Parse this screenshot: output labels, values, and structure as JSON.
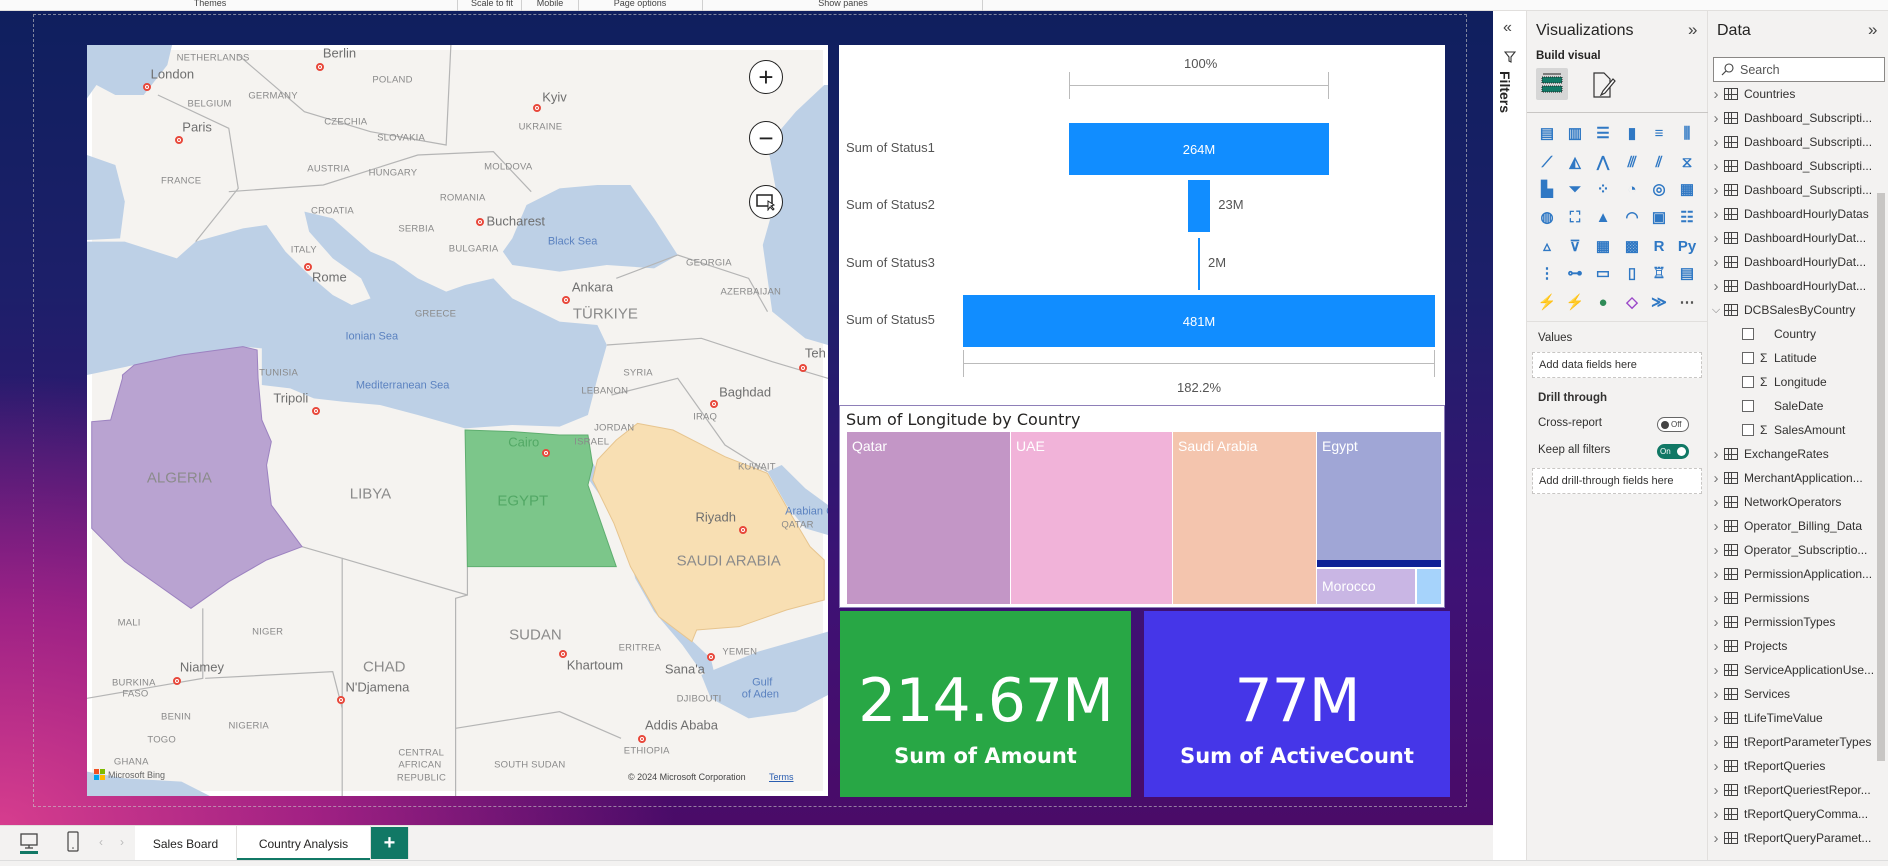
{
  "ribbon": {
    "groups": [
      "Themes",
      "Scale to fit",
      "Mobile",
      "Page options",
      "Show panes"
    ]
  },
  "map": {
    "labels": [
      "NETHERLANDS",
      "Berlin",
      "London",
      "POLAND",
      "GERMANY",
      "Kyiv",
      "BELGIUM",
      "Paris",
      "CZECHIA",
      "UKRAINE",
      "SLOVAKIA",
      "MOLDOVA",
      "AUSTRIA",
      "HUNGARY",
      "FRANCE",
      "ROMANIA",
      "CROATIA",
      "Bucharest",
      "SERBIA",
      "Black Sea",
      "ITALY",
      "BULGARIA",
      "GEORGIA",
      "Rome",
      "Ankara",
      "AZERBAIJAN",
      "TÜRKIYE",
      "GREECE",
      "Ionian Sea",
      "Teh",
      "TUNISIA",
      "SYRIA",
      "Mediterranean Sea",
      "LEBANON",
      "Baghdad",
      "Tripoli",
      "IRAQ",
      "JORDAN",
      "Cairo",
      "ISRAEL",
      "ALGERIA",
      "LIBYA",
      "KUWAIT",
      "EGYPT",
      "Riyadh",
      "Arabian G",
      "QATAR",
      "SAUDI ARABIA",
      "MALI",
      "NIGER",
      "SUDAN",
      "ERITREA",
      "YEMEN",
      "Khartoum",
      "CHAD",
      "Niamey",
      "Sana'a",
      "BURKINA",
      "FASO",
      "N'Djamena",
      "Gulf",
      "of Aden",
      "DJIBOUTI",
      "BENIN",
      "NIGERIA",
      "Addis Ababa",
      "TOGO",
      "ETHIOPIA",
      "CENTRAL",
      "AFRICAN",
      "REPUBLIC",
      "SOUTH SUDAN",
      "GHANA"
    ],
    "highlighted_countries": [
      {
        "name": "ALGERIA",
        "color": "#b9a3d1"
      },
      {
        "name": "EGYPT",
        "color": "#7cc68a"
      },
      {
        "name": "SAUDI ARABIA",
        "color": "#f8dfb3"
      }
    ],
    "controls": [
      "zoom-in",
      "zoom-out",
      "select-area"
    ],
    "logo": "Microsoft Bing",
    "copyright": "© 2024 Microsoft Corporation",
    "terms": "Terms"
  },
  "funnel": {
    "top_pct": "100%",
    "bottom_pct": "182.2%",
    "color": "#118dff",
    "stages": [
      {
        "label": "Sum of Status1",
        "value": 264,
        "display": "264M"
      },
      {
        "label": "Sum of Status2",
        "value": 23,
        "display": "23M"
      },
      {
        "label": "Sum of Status3",
        "value": 2,
        "display": "2M"
      },
      {
        "label": "Sum of Status5",
        "value": 481,
        "display": "481M"
      }
    ]
  },
  "treemap": {
    "title": "Sum of Longitude by Country",
    "cells": [
      {
        "name": "Qatar",
        "color": "#c396c6"
      },
      {
        "name": "UAE",
        "color": "#f1b3d9"
      },
      {
        "name": "Saudi Arabia",
        "color": "#f4c5ae"
      },
      {
        "name": "Egypt",
        "color": "#a0a6d6"
      },
      {
        "name": "Morocco",
        "color": "#c9b6e4"
      },
      {
        "name": "",
        "color": "#a6d3fb"
      }
    ]
  },
  "cards": [
    {
      "value": "214.67M",
      "label": "Sum of Amount",
      "color": "#28a745"
    },
    {
      "value": "77M",
      "label": "Sum of ActiveCount",
      "color": "#4536e8"
    }
  ],
  "pages": {
    "tabs": [
      "Sales Board",
      "Country Analysis"
    ],
    "active": "Country Analysis",
    "add": "+"
  },
  "filters": {
    "label": "Filters"
  },
  "viz": {
    "title": "Visualizations",
    "build_visual": "Build visual",
    "icons": [
      "stacked-bar",
      "stacked-column",
      "clustered-bar",
      "clustered-column",
      "100-stacked-bar",
      "100-stacked-column",
      "line",
      "area",
      "stacked-area",
      "line-stacked-column",
      "line-clustered-column",
      "ribbon",
      "waterfall",
      "funnel",
      "scatter",
      "pie",
      "donut",
      "treemap",
      "map",
      "filled-map",
      "azure-map",
      "gauge",
      "card",
      "multi-row-card",
      "kpi",
      "slicer",
      "table",
      "matrix",
      "r-visual",
      "python-visual",
      "key-influencers",
      "decomposition-tree",
      "qa",
      "paginated-report",
      "metrics",
      "narrative",
      "power-apps",
      "power-automate-slicer",
      "arcgis",
      "diamond",
      "power-automate",
      "more"
    ],
    "values_label": "Values",
    "values_placeholder": "Add data fields here",
    "drill_label": "Drill through",
    "cross_report": "Cross-report",
    "cross_report_state": "Off",
    "keep_filters": "Keep all filters",
    "keep_filters_state": "On",
    "drill_placeholder": "Add drill-through fields here"
  },
  "data": {
    "title": "Data",
    "search_placeholder": "Search",
    "items": [
      {
        "name": "Countries",
        "kind": "table"
      },
      {
        "name": "Dashboard_Subscripti...",
        "kind": "table"
      },
      {
        "name": "Dashboard_Subscripti...",
        "kind": "table"
      },
      {
        "name": "Dashboard_Subscripti...",
        "kind": "table"
      },
      {
        "name": "Dashboard_Subscripti...",
        "kind": "table"
      },
      {
        "name": "DashboardHourlyDatas",
        "kind": "table"
      },
      {
        "name": "DashboardHourlyDat...",
        "kind": "table"
      },
      {
        "name": "DashboardHourlyDat...",
        "kind": "table"
      },
      {
        "name": "DashboardHourlyDat...",
        "kind": "table"
      },
      {
        "name": "DCBSalesByCountry",
        "kind": "table",
        "expanded": true
      },
      {
        "name": "Country",
        "kind": "field"
      },
      {
        "name": "Latitude",
        "kind": "field",
        "sum": true
      },
      {
        "name": "Longitude",
        "kind": "field",
        "sum": true
      },
      {
        "name": "SaleDate",
        "kind": "field"
      },
      {
        "name": "SalesAmount",
        "kind": "field",
        "sum": true
      },
      {
        "name": "ExchangeRates",
        "kind": "table"
      },
      {
        "name": "MerchantApplication...",
        "kind": "table"
      },
      {
        "name": "NetworkOperators",
        "kind": "table"
      },
      {
        "name": "Operator_Billing_Data",
        "kind": "table"
      },
      {
        "name": "Operator_Subscriptio...",
        "kind": "table"
      },
      {
        "name": "PermissionApplication...",
        "kind": "table"
      },
      {
        "name": "Permissions",
        "kind": "table"
      },
      {
        "name": "PermissionTypes",
        "kind": "table"
      },
      {
        "name": "Projects",
        "kind": "table"
      },
      {
        "name": "ServiceApplicationUse...",
        "kind": "table"
      },
      {
        "name": "Services",
        "kind": "table"
      },
      {
        "name": "tLifeTimeValue",
        "kind": "table"
      },
      {
        "name": "tReportParameterTypes",
        "kind": "table"
      },
      {
        "name": "tReportQueries",
        "kind": "table"
      },
      {
        "name": "tReportQueriestRepor...",
        "kind": "table"
      },
      {
        "name": "tReportQueryComma...",
        "kind": "table"
      },
      {
        "name": "tReportQueryParamet...",
        "kind": "table"
      }
    ]
  },
  "accent": "#117865"
}
